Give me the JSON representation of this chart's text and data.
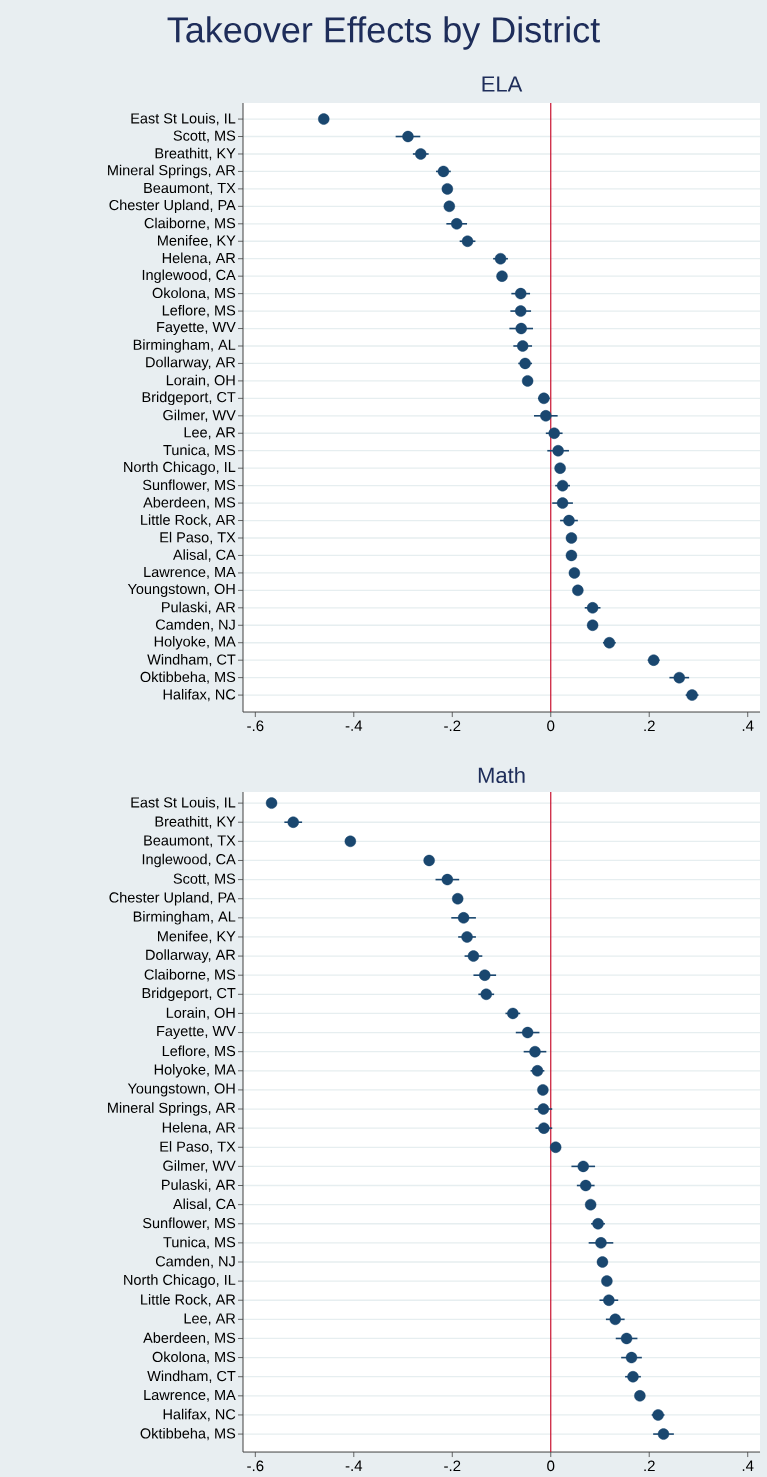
{
  "chart_data": [
    {
      "type": "scatter",
      "title": "Takeover Effects by District",
      "subtitle": "ELA",
      "orientation": "horizontal",
      "categories": [
        "East St Louis, IL",
        "Scott, MS",
        "Breathitt, KY",
        "Mineral Springs, AR",
        "Beaumont, TX",
        "Chester Upland, PA",
        "Claiborne, MS",
        "Menifee, KY",
        "Helena, AR",
        "Inglewood, CA",
        "Okolona, MS",
        "Leflore, MS",
        "Fayette, WV",
        "Birmingham, AL",
        "Dollarway, AR",
        "Lorain, OH",
        "Bridgeport, CT",
        "Gilmer, WV",
        "Lee, AR",
        "Tunica, MS",
        "North Chicago, IL",
        "Sunflower, MS",
        "Aberdeen, MS",
        "Little Rock, AR",
        "El Paso, TX",
        "Alisal, CA",
        "Lawrence, MA",
        "Youngstown, OH",
        "Pulaski, AR",
        "Camden, NJ",
        "Holyoke, MA",
        "Windham, CT",
        "Oktibbeha, MS",
        "Halifax, NC"
      ],
      "series": [
        {
          "color": "#1a476f",
          "values": [
            -0.461,
            -0.29,
            -0.264,
            -0.218,
            -0.21,
            -0.206,
            -0.191,
            -0.169,
            -0.102,
            -0.099,
            -0.061,
            -0.061,
            -0.06,
            -0.057,
            -0.052,
            -0.047,
            -0.014,
            -0.01,
            0.007,
            0.015,
            0.019,
            0.024,
            0.024,
            0.037,
            0.042,
            0.042,
            0.048,
            0.055,
            0.085,
            0.085,
            0.119,
            0.209,
            0.261,
            0.287
          ],
          "errors": [
            null,
            0.025,
            0.016,
            0.015,
            null,
            null,
            0.021,
            0.016,
            0.015,
            null,
            0.019,
            0.021,
            0.024,
            0.019,
            0.014,
            null,
            0.012,
            0.024,
            0.017,
            0.022,
            null,
            0.015,
            0.021,
            0.018,
            null,
            null,
            null,
            null,
            0.016,
            null,
            0.013,
            0.012,
            0.02,
            0.013
          ]
        }
      ],
      "xlim": [
        -0.625,
        0.425
      ],
      "xticks": [
        {
          "value": -0.6,
          "label": "-.6"
        },
        {
          "value": -0.4,
          "label": "-.4"
        },
        {
          "value": -0.2,
          "label": "-.2"
        },
        0,
        {
          "value": 0.2,
          "label": ".2"
        },
        {
          "value": 0.4,
          "label": ".4"
        }
      ],
      "ref_lines": [
        {
          "axis": "x",
          "value": 0,
          "color": "#c8102e"
        }
      ],
      "grid": "y",
      "marker": "circle"
    },
    {
      "type": "scatter",
      "title": "Math",
      "orientation": "horizontal",
      "categories": [
        "East St Louis, IL",
        "Breathitt, KY",
        "Beaumont, TX",
        "Inglewood, CA",
        "Scott, MS",
        "Chester Upland, PA",
        "Birmingham, AL",
        "Menifee, KY",
        "Dollarway, AR",
        "Claiborne, MS",
        "Bridgeport, CT",
        "Lorain, OH",
        "Fayette, WV",
        "Leflore, MS",
        "Holyoke, MA",
        "Youngstown, OH",
        "Mineral Springs, AR",
        "Helena, AR",
        "El Paso, TX",
        "Gilmer, WV",
        "Pulaski, AR",
        "Alisal, CA",
        "Sunflower, MS",
        "Tunica, MS",
        "Camden, NJ",
        "North Chicago, IL",
        "Little Rock, AR",
        "Lee, AR",
        "Aberdeen, MS",
        "Okolona, MS",
        "Windham, CT",
        "Lawrence, MA",
        "Halifax, NC",
        "Oktibbeha, MS"
      ],
      "series": [
        {
          "color": "#1a476f",
          "values": [
            -0.567,
            -0.523,
            -0.407,
            -0.247,
            -0.21,
            -0.189,
            -0.177,
            -0.17,
            -0.157,
            -0.134,
            -0.131,
            -0.077,
            -0.047,
            -0.032,
            -0.027,
            -0.016,
            -0.015,
            -0.014,
            0.01,
            0.066,
            0.071,
            0.081,
            0.096,
            0.102,
            0.105,
            0.114,
            0.118,
            0.131,
            0.154,
            0.164,
            0.167,
            0.181,
            0.218,
            0.229
          ],
          "errors": [
            null,
            0.018,
            null,
            null,
            0.024,
            null,
            0.025,
            0.018,
            0.018,
            0.023,
            0.016,
            0.015,
            0.024,
            0.023,
            0.014,
            0.01,
            0.018,
            0.017,
            null,
            0.024,
            0.018,
            null,
            0.014,
            0.025,
            0.01,
            null,
            0.019,
            0.019,
            0.022,
            0.021,
            0.016,
            null,
            0.013,
            0.021
          ]
        }
      ],
      "xlim": [
        -0.625,
        0.425
      ],
      "xticks": [
        {
          "value": -0.6,
          "label": "-.6"
        },
        {
          "value": -0.4,
          "label": "-.4"
        },
        {
          "value": -0.2,
          "label": "-.2"
        },
        0,
        {
          "value": 0.2,
          "label": ".2"
        },
        {
          "value": 0.4,
          "label": ".4"
        }
      ],
      "ref_lines": [
        {
          "axis": "x",
          "value": 0,
          "color": "#c8102e"
        }
      ],
      "grid": "y",
      "marker": "circle"
    }
  ]
}
